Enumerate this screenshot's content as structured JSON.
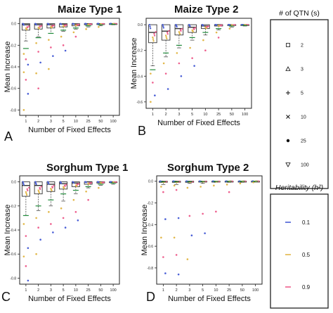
{
  "figure": {
    "ylabel": "Mean Increase",
    "xlabel": "Number of Fixed Effects",
    "categories": [
      "1",
      "2",
      "3",
      "5",
      "10",
      "25",
      "50",
      "100"
    ],
    "yticks": [
      "0.0",
      "-0.2",
      "-0.4",
      "-0.6",
      "-0.8"
    ],
    "colors": {
      "h01": "#4a5fd6",
      "h05": "#e2b84a",
      "h09": "#ee5f8e",
      "mean_line": "#1f8a3a",
      "box": "#333333"
    }
  },
  "legend_qtn": {
    "title": "# of QTN (s)",
    "items": [
      {
        "symbol": "square",
        "label": "2"
      },
      {
        "symbol": "triangle",
        "label": "3"
      },
      {
        "symbol": "plus",
        "label": "5"
      },
      {
        "symbol": "cross",
        "label": "10"
      },
      {
        "symbol": "dot",
        "label": "25"
      },
      {
        "symbol": "down-triangle",
        "label": "100"
      }
    ]
  },
  "legend_h2": {
    "title": "Heritability (h²)",
    "items": [
      {
        "color_key": "h01",
        "label": "0.1"
      },
      {
        "color_key": "h05",
        "label": "0.5"
      },
      {
        "color_key": "h09",
        "label": "0.9"
      }
    ]
  },
  "chart_data": [
    {
      "type": "box",
      "panel_letter": "A",
      "title": "Maize Type 1",
      "xlabel": "Number of Fixed Effects",
      "ylabel": "Mean Increase",
      "categories": [
        "1",
        "2",
        "3",
        "5",
        "10",
        "25",
        "50",
        "100"
      ],
      "ylim": [
        -0.85,
        0.05
      ],
      "boxes": [
        {
          "q1": -0.06,
          "median": -0.01,
          "q3": 0.0,
          "whisker_low": -0.16
        },
        {
          "q1": -0.05,
          "median": -0.01,
          "q3": 0.0,
          "whisker_low": -0.12
        },
        {
          "q1": -0.04,
          "median": -0.01,
          "q3": 0.0,
          "whisker_low": -0.09
        },
        {
          "q1": -0.03,
          "median": -0.005,
          "q3": 0.0,
          "whisker_low": -0.07
        },
        {
          "q1": -0.02,
          "median": -0.005,
          "q3": 0.0,
          "whisker_low": -0.05
        },
        {
          "q1": -0.01,
          "median": 0.0,
          "q3": 0.0,
          "whisker_low": -0.03
        },
        {
          "q1": -0.005,
          "median": 0.0,
          "q3": 0.0,
          "whisker_low": -0.02
        },
        {
          "q1": -0.002,
          "median": 0.0,
          "q3": 0.0,
          "whisker_low": -0.01
        }
      ],
      "means": [
        -0.23,
        -0.13,
        -0.09,
        -0.06,
        -0.04,
        -0.02,
        -0.01,
        -0.005
      ],
      "outliers": [
        [
          -0.28,
          -0.33,
          -0.38,
          -0.45,
          -0.52,
          -0.65,
          -0.8
        ],
        [
          -0.18,
          -0.26,
          -0.36,
          -0.46,
          -0.6
        ],
        [
          -0.15,
          -0.22,
          -0.3,
          -0.42
        ],
        [
          -0.12,
          -0.2,
          -0.25
        ],
        [
          -0.08,
          -0.12
        ],
        [
          -0.05
        ],
        [
          -0.03
        ],
        []
      ]
    },
    {
      "type": "box",
      "panel_letter": "B",
      "title": "Maize Type 2",
      "xlabel": "Number of Fixed Effects",
      "ylabel": "Mean Increase",
      "categories": [
        "1",
        "2",
        "3",
        "5",
        "10",
        "25",
        "50",
        "100"
      ],
      "ylim": [
        -0.65,
        0.05
      ],
      "boxes": [
        {
          "q1": -0.14,
          "median": -0.06,
          "q3": 0.0,
          "whisker_low": -0.32
        },
        {
          "q1": -0.12,
          "median": -0.05,
          "q3": 0.0,
          "whisker_low": -0.25
        },
        {
          "q1": -0.08,
          "median": -0.03,
          "q3": 0.0,
          "whisker_low": -0.18
        },
        {
          "q1": -0.06,
          "median": -0.02,
          "q3": 0.0,
          "whisker_low": -0.12
        },
        {
          "q1": -0.03,
          "median": -0.01,
          "q3": 0.0,
          "whisker_low": -0.08
        },
        {
          "q1": -0.01,
          "median": 0.0,
          "q3": 0.0,
          "whisker_low": -0.04
        },
        {
          "q1": -0.005,
          "median": 0.0,
          "q3": 0.0,
          "whisker_low": -0.02
        },
        {
          "q1": -0.002,
          "median": 0.0,
          "q3": 0.0,
          "whisker_low": -0.01
        }
      ],
      "means": [
        -0.35,
        -0.22,
        -0.16,
        -0.1,
        -0.06,
        -0.03,
        -0.01,
        -0.005
      ],
      "outliers": [
        [
          -0.38,
          -0.45,
          -0.55,
          -0.6
        ],
        [
          -0.3,
          -0.38,
          -0.5
        ],
        [
          -0.22,
          -0.3,
          -0.4
        ],
        [
          -0.18,
          -0.26,
          -0.32
        ],
        [
          -0.12,
          -0.2
        ],
        [
          -0.06,
          -0.1
        ],
        [
          -0.03
        ],
        []
      ]
    },
    {
      "type": "box",
      "panel_letter": "C",
      "title": "Sorghum Type 1",
      "xlabel": "Number of Fixed Effects",
      "ylabel": "Mean Increase",
      "categories": [
        "1",
        "2",
        "3",
        "5",
        "10",
        "25",
        "50",
        "100"
      ],
      "ylim": [
        -0.85,
        0.05
      ],
      "boxes": [
        {
          "q1": -0.12,
          "median": -0.03,
          "q3": 0.0,
          "whisker_low": -0.28
        },
        {
          "q1": -0.1,
          "median": -0.03,
          "q3": 0.0,
          "whisker_low": -0.24
        },
        {
          "q1": -0.08,
          "median": -0.02,
          "q3": 0.0,
          "whisker_low": -0.2
        },
        {
          "q1": -0.06,
          "median": -0.015,
          "q3": 0.0,
          "whisker_low": -0.16
        },
        {
          "q1": -0.04,
          "median": -0.01,
          "q3": 0.0,
          "whisker_low": -0.1
        },
        {
          "q1": -0.02,
          "median": 0.0,
          "q3": 0.0,
          "whisker_low": -0.05
        },
        {
          "q1": -0.01,
          "median": 0.0,
          "q3": 0.0,
          "whisker_low": -0.03
        },
        {
          "q1": -0.005,
          "median": 0.0,
          "q3": 0.0,
          "whisker_low": -0.02
        }
      ],
      "means": [
        -0.28,
        -0.2,
        -0.15,
        -0.1,
        -0.07,
        -0.04,
        -0.02,
        -0.01
      ],
      "outliers": [
        [
          -0.35,
          -0.45,
          -0.55,
          -0.62,
          -0.7,
          -0.82
        ],
        [
          -0.3,
          -0.38,
          -0.48,
          -0.6
        ],
        [
          -0.25,
          -0.35,
          -0.42
        ],
        [
          -0.22,
          -0.3,
          -0.38
        ],
        [
          -0.15,
          -0.25,
          -0.32
        ],
        [
          -0.08,
          -0.15
        ],
        [
          -0.05
        ],
        []
      ]
    },
    {
      "type": "box",
      "panel_letter": "D",
      "title": "Sorghum Type 2",
      "xlabel": "Number of Fixed Effects",
      "ylabel": "Mean Increase",
      "categories": [
        "1",
        "2",
        "3",
        "5",
        "10",
        "25",
        "50",
        "100"
      ],
      "ylim": [
        -0.95,
        0.05
      ],
      "boxes": [
        {
          "q1": -0.01,
          "median": 0.0,
          "q3": 0.0,
          "whisker_low": -0.03
        },
        {
          "q1": -0.01,
          "median": 0.0,
          "q3": 0.0,
          "whisker_low": -0.03
        },
        {
          "q1": -0.01,
          "median": 0.0,
          "q3": 0.0,
          "whisker_low": -0.02
        },
        {
          "q1": -0.005,
          "median": 0.0,
          "q3": 0.0,
          "whisker_low": -0.02
        },
        {
          "q1": -0.005,
          "median": 0.0,
          "q3": 0.0,
          "whisker_low": -0.01
        },
        {
          "q1": -0.002,
          "median": 0.0,
          "q3": 0.0,
          "whisker_low": -0.01
        },
        {
          "q1": -0.002,
          "median": 0.0,
          "q3": 0.0,
          "whisker_low": -0.01
        },
        {
          "q1": -0.001,
          "median": 0.0,
          "q3": 0.0,
          "whisker_low": -0.005
        }
      ],
      "means": [
        -0.005,
        -0.005,
        -0.004,
        -0.003,
        -0.002,
        -0.001,
        -0.001,
        -0.001
      ],
      "outliers": [
        [
          -0.05,
          -0.1,
          -0.35,
          -0.52,
          -0.7,
          -0.85
        ],
        [
          -0.04,
          -0.08,
          -0.34,
          -0.52,
          -0.68,
          -0.86
        ],
        [
          -0.06,
          -0.32,
          -0.5,
          -0.72
        ],
        [
          -0.05,
          -0.3,
          -0.48
        ],
        [
          -0.04,
          -0.28
        ],
        [
          -0.03,
          -0.1
        ],
        [
          -0.02
        ],
        [
          -0.01
        ]
      ]
    }
  ]
}
